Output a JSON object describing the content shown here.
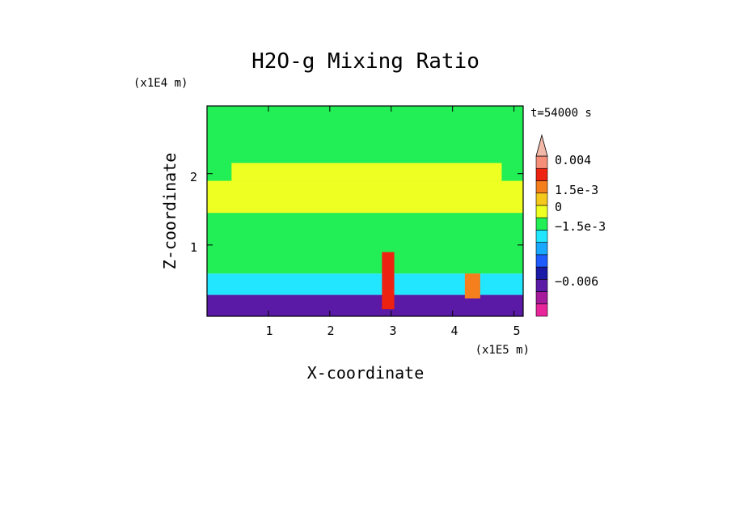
{
  "chart_data": {
    "type": "heatmap",
    "title": "H2O-g Mixing Ratio",
    "xlabel": "X-coordinate",
    "ylabel": "Z-coordinate",
    "x_scale_label": "(x1E5 m)",
    "y_scale_label": "(x1E4 m)",
    "time_label": "t=54000 s",
    "xlim": [
      0,
      5.15
    ],
    "ylim": [
      0,
      2.95
    ],
    "x_ticks": [
      "1",
      "2",
      "3",
      "4",
      "5"
    ],
    "y_ticks": [
      "1",
      "2"
    ],
    "colorbar": {
      "labels": [
        "0.004",
        "1.5e-3",
        "0",
        "−1.5e-3",
        "−0.006"
      ],
      "bins": [
        {
          "lo": -0.009,
          "hi": -0.006,
          "color": "#e8259a"
        },
        {
          "lo": -0.006,
          "hi": -0.004,
          "color": "#a61b9b"
        },
        {
          "lo": -0.004,
          "hi": -0.002,
          "color": "#5b1aa6"
        },
        {
          "lo": -0.002,
          "hi": -0.0015,
          "color": "#1a1aa6"
        },
        {
          "lo": -0.0015,
          "hi": -0.001,
          "color": "#1f5cff"
        },
        {
          "lo": -0.001,
          "hi": -0.0005,
          "color": "#19a8ff"
        },
        {
          "lo": -0.0005,
          "hi": 0.0,
          "color": "#22e6ff"
        },
        {
          "lo": 0.0,
          "hi": 0.0005,
          "color": "#22ee55"
        },
        {
          "lo": 0.0005,
          "hi": 0.001,
          "color": "#eeff22"
        },
        {
          "lo": 0.001,
          "hi": 0.0015,
          "color": "#f5c81c"
        },
        {
          "lo": 0.0015,
          "hi": 0.002,
          "color": "#f57f1c"
        },
        {
          "lo": 0.002,
          "hi": 0.003,
          "color": "#ee2211"
        },
        {
          "lo": 0.003,
          "hi": 0.004,
          "color": "#f58f7a"
        },
        {
          "lo": 0.004,
          "hi": 0.006,
          "color": "#f2b8a8"
        }
      ]
    },
    "field_regions": [
      {
        "x": [
          0.0,
          5.15
        ],
        "z": [
          0.0,
          0.3
        ],
        "value": -0.003
      },
      {
        "x": [
          0.0,
          5.15
        ],
        "z": [
          0.3,
          0.6
        ],
        "value": -0.0003
      },
      {
        "x": [
          0.0,
          5.15
        ],
        "z": [
          0.6,
          2.95
        ],
        "value": 0.0003
      },
      {
        "x": [
          0.4,
          4.8
        ],
        "z": [
          1.9,
          2.15
        ],
        "value": 0.0007
      },
      {
        "x": [
          0.0,
          5.15
        ],
        "z": [
          1.45,
          1.9
        ],
        "value": 0.0007
      },
      {
        "x": [
          2.85,
          3.05
        ],
        "z": [
          0.1,
          0.9
        ],
        "value": 0.0025
      },
      {
        "x": [
          4.2,
          4.45
        ],
        "z": [
          0.25,
          0.6
        ],
        "value": 0.0018
      }
    ]
  }
}
